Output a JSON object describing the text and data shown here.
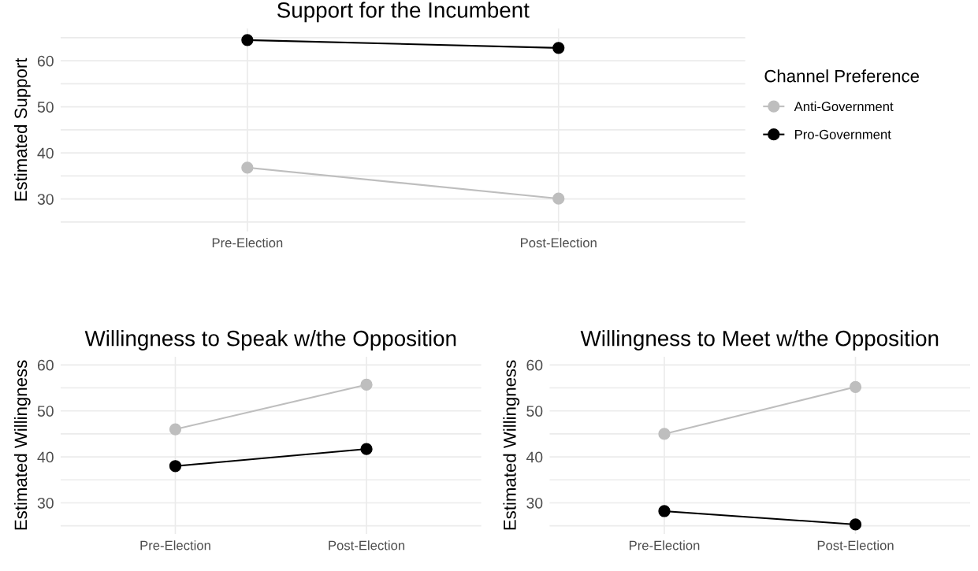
{
  "chart_data": [
    {
      "type": "line",
      "title": "Support for the Incumbent",
      "ylabel": "Estimated Support",
      "categories": [
        "Pre-Election",
        "Post-Election"
      ],
      "ylim": [
        23,
        67
      ],
      "yticks": [
        {
          "value": 25,
          "label": null
        },
        30,
        {
          "value": 35,
          "label": null
        },
        40,
        {
          "value": 45,
          "label": null
        },
        50,
        {
          "value": 55,
          "label": null
        },
        60,
        {
          "value": 65,
          "label": null
        }
      ],
      "grid": true,
      "marker": "circle",
      "line_style": "solid",
      "legend": "right",
      "legend_title": "Channel Preference",
      "series": [
        {
          "name": "Anti-Government",
          "color": "#bebebe",
          "values": [
            36.8,
            30.1
          ]
        },
        {
          "name": "Pro-Government",
          "color": "#000000",
          "values": [
            64.5,
            62.8
          ]
        }
      ]
    },
    {
      "type": "line",
      "title": "Willingness to Speak w/the Opposition",
      "ylabel": "Estimated Willingness",
      "categories": [
        "Pre-Election",
        "Post-Election"
      ],
      "ylim": [
        23.25,
        61.75
      ],
      "yticks": [
        {
          "value": 25,
          "label": null
        },
        30,
        {
          "value": 35,
          "label": null
        },
        40,
        {
          "value": 45,
          "label": null
        },
        50,
        {
          "value": 55,
          "label": null
        },
        60
      ],
      "grid": true,
      "marker": "circle",
      "line_style": "solid",
      "series": [
        {
          "color": "#bebebe",
          "values": [
            46.0,
            55.7
          ]
        },
        {
          "color": "#000000",
          "values": [
            38.0,
            41.7
          ]
        }
      ]
    },
    {
      "type": "line",
      "title": "Willingness to Meet w/the Opposition",
      "ylabel": "Estimated Willingness",
      "categories": [
        "Pre-Election",
        "Post-Election"
      ],
      "ylim": [
        23.25,
        61.75
      ],
      "yticks": [
        {
          "value": 25,
          "label": null
        },
        30,
        {
          "value": 35,
          "label": null
        },
        40,
        {
          "value": 45,
          "label": null
        },
        50,
        {
          "value": 55,
          "label": null
        },
        60
      ],
      "grid": true,
      "marker": "circle",
      "line_style": "solid",
      "series": [
        {
          "color": "#bebebe",
          "values": [
            45.0,
            55.2
          ]
        },
        {
          "color": "#000000",
          "values": [
            28.2,
            25.3
          ]
        }
      ]
    }
  ]
}
